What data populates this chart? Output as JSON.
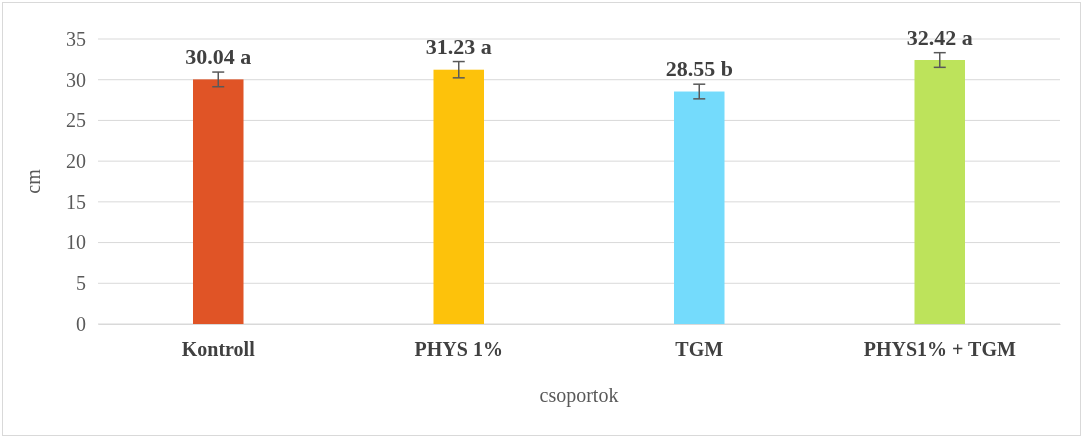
{
  "chart_data": {
    "type": "bar",
    "xlabel": "csoportok",
    "ylabel": "cm",
    "categories": [
      "Kontroll",
      "PHYS 1%",
      "TGM",
      "PHYS1% + TGM"
    ],
    "values": [
      30.04,
      31.23,
      28.55,
      32.42
    ],
    "colors": [
      "#e05426",
      "#fdc20b",
      "#74dbfc",
      "#bde35b"
    ],
    "errors": [
      0.9,
      1.0,
      0.9,
      0.9
    ],
    "value_labels": [
      "30.04 a",
      "31.23 a",
      "28.55 b",
      "32.42 a"
    ],
    "ylim": [
      0,
      35
    ],
    "yticks": [
      0,
      5,
      10,
      15,
      20,
      25,
      30,
      35
    ],
    "grid": "y"
  }
}
